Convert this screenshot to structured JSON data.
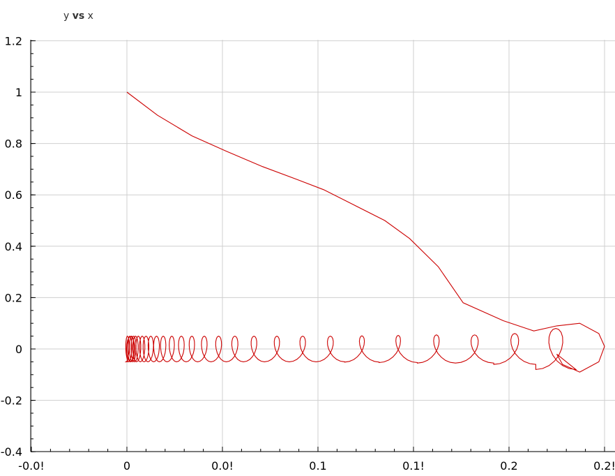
{
  "title": {
    "before": "y ",
    "bold": "vs",
    "after": " x"
  },
  "chart_data": {
    "type": "line",
    "title": "y vs x",
    "xlabel": "",
    "ylabel": "",
    "xlim": [
      -0.005,
      0.25
    ],
    "ylim": [
      -0.4,
      1.2
    ],
    "x_ticks": [
      -0.05,
      0,
      0.05,
      0.1,
      0.15,
      0.2,
      0.25
    ],
    "x_tick_labels": [
      "-0.0!",
      "0",
      "0.0!",
      "0.1",
      "0.1!",
      "0.2",
      "0.2!"
    ],
    "y_ticks": [
      -0.4,
      -0.2,
      0,
      0.2,
      0.4,
      0.6,
      0.8,
      1,
      1.2
    ],
    "y_tick_labels": [
      "-0.4",
      "-0.2",
      "0",
      "0.2",
      "0.4",
      "0.6",
      "0.8",
      "1",
      "1.2"
    ],
    "grid": true,
    "legend": "none",
    "series": [
      {
        "color": "#cc0000",
        "descending_branch": {
          "x": [
            0,
            0.016,
            0.034,
            0.052,
            0.071,
            0.089,
            0.103,
            0.119,
            0.135,
            0.148,
            0.163,
            0.176
          ],
          "y": [
            1.0,
            0.91,
            0.83,
            0.77,
            0.71,
            0.66,
            0.62,
            0.56,
            0.5,
            0.43,
            0.32,
            0.18
          ]
        },
        "spiral_loops": {
          "center_x": [
            0.235,
            0.214,
            0.192,
            0.172,
            0.152,
            0.132,
            0.114,
            0.099,
            0.085,
            0.072,
            0.061,
            0.052,
            0.044,
            0.037,
            0.031,
            0.026,
            0.021,
            0.017,
            0.014,
            0.011,
            0.009,
            0.007,
            0.005,
            0.004,
            0.003,
            0.002,
            0.001
          ],
          "amplitude_y": [
            0.08,
            0.06,
            0.055,
            0.055,
            0.053,
            0.051,
            0.05,
            0.05,
            0.05,
            0.05,
            0.05,
            0.05,
            0.05,
            0.05,
            0.05,
            0.05,
            0.05,
            0.05,
            0.05,
            0.05,
            0.05,
            0.05,
            0.05,
            0.05,
            0.05,
            0.05,
            0.05
          ],
          "amplitude_x": [
            0.015,
            0.012,
            0.011,
            0.01,
            0.0095,
            0.009,
            0.0085,
            0.008,
            0.0075,
            0.007,
            0.0065,
            0.006,
            0.0055,
            0.005,
            0.0048,
            0.0045,
            0.0042,
            0.004,
            0.0038,
            0.0036,
            0.0034,
            0.0032,
            0.003,
            0.0028,
            0.0026,
            0.0024,
            0.0022
          ]
        }
      }
    ]
  }
}
